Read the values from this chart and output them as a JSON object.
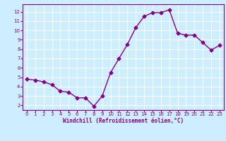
{
  "x": [
    0,
    1,
    2,
    3,
    4,
    5,
    6,
    7,
    8,
    9,
    10,
    11,
    12,
    13,
    14,
    15,
    16,
    17,
    18,
    19,
    20,
    21,
    22,
    23
  ],
  "y": [
    4.8,
    4.7,
    4.5,
    4.2,
    3.5,
    3.4,
    2.8,
    2.8,
    1.9,
    3.0,
    5.5,
    7.0,
    8.5,
    10.3,
    11.5,
    11.9,
    11.9,
    12.2,
    9.7,
    9.5,
    9.5,
    8.7,
    7.9,
    8.4
  ],
  "line_color": "#880088",
  "marker": "D",
  "marker_size": 2.5,
  "bg_color": "#cceeff",
  "grid_color": "#ffffff",
  "xlabel": "Windchill (Refroidissement éolien,°C)",
  "xlabel_color": "#880088",
  "tick_color": "#880088",
  "spine_color": "#880088",
  "ylim": [
    1.5,
    12.8
  ],
  "xlim": [
    -0.5,
    23.5
  ],
  "yticks": [
    2,
    3,
    4,
    5,
    6,
    7,
    8,
    9,
    10,
    11,
    12
  ],
  "xticks": [
    0,
    1,
    2,
    3,
    4,
    5,
    6,
    7,
    8,
    9,
    10,
    11,
    12,
    13,
    14,
    15,
    16,
    17,
    18,
    19,
    20,
    21,
    22,
    23
  ],
  "xtick_labels": [
    "0",
    "1",
    "2",
    "3",
    "4",
    "5",
    "6",
    "7",
    "8",
    "9",
    "10",
    "11",
    "12",
    "13",
    "14",
    "15",
    "16",
    "17",
    "18",
    "19",
    "20",
    "21",
    "22",
    "23"
  ],
  "xlabel_fontsize": 5.5,
  "tick_fontsize": 5.0,
  "linewidth": 1.0
}
